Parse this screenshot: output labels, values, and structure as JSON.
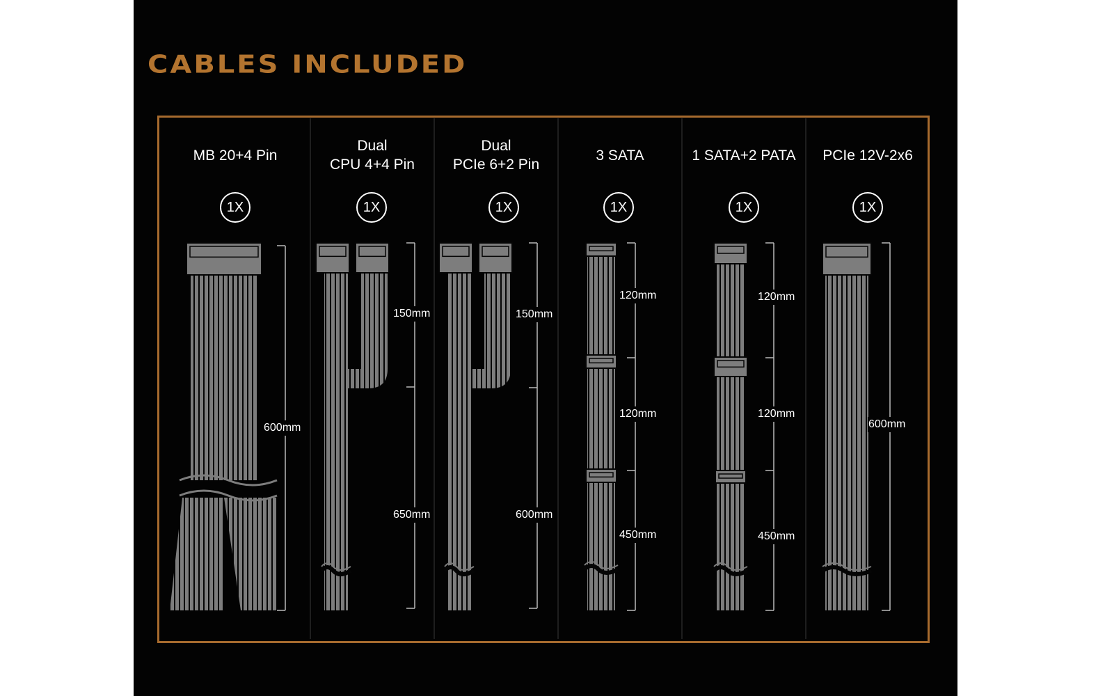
{
  "title": "CABLES INCLUDED",
  "colors": {
    "accent": "#b3742f",
    "cable": "#7d7d7d",
    "background": "#030303"
  },
  "columns": [
    {
      "name_lines": [
        "MB 20+4 Pin"
      ],
      "qty": "1X",
      "lengths": [
        "600mm"
      ]
    },
    {
      "name_lines": [
        "Dual",
        "CPU 4+4 Pin"
      ],
      "qty": "1X",
      "lengths": [
        "150mm",
        "650mm"
      ]
    },
    {
      "name_lines": [
        "Dual",
        "PCIe 6+2 Pin"
      ],
      "qty": "1X",
      "lengths": [
        "150mm",
        "600mm"
      ]
    },
    {
      "name_lines": [
        "3 SATA"
      ],
      "qty": "1X",
      "lengths": [
        "120mm",
        "120mm",
        "450mm"
      ]
    },
    {
      "name_lines": [
        "1 SATA+2 PATA"
      ],
      "qty": "1X",
      "lengths": [
        "120mm",
        "120mm",
        "450mm"
      ]
    },
    {
      "name_lines": [
        "PCIe 12V-2x6"
      ],
      "qty": "1X",
      "lengths": [
        "600mm"
      ]
    }
  ]
}
